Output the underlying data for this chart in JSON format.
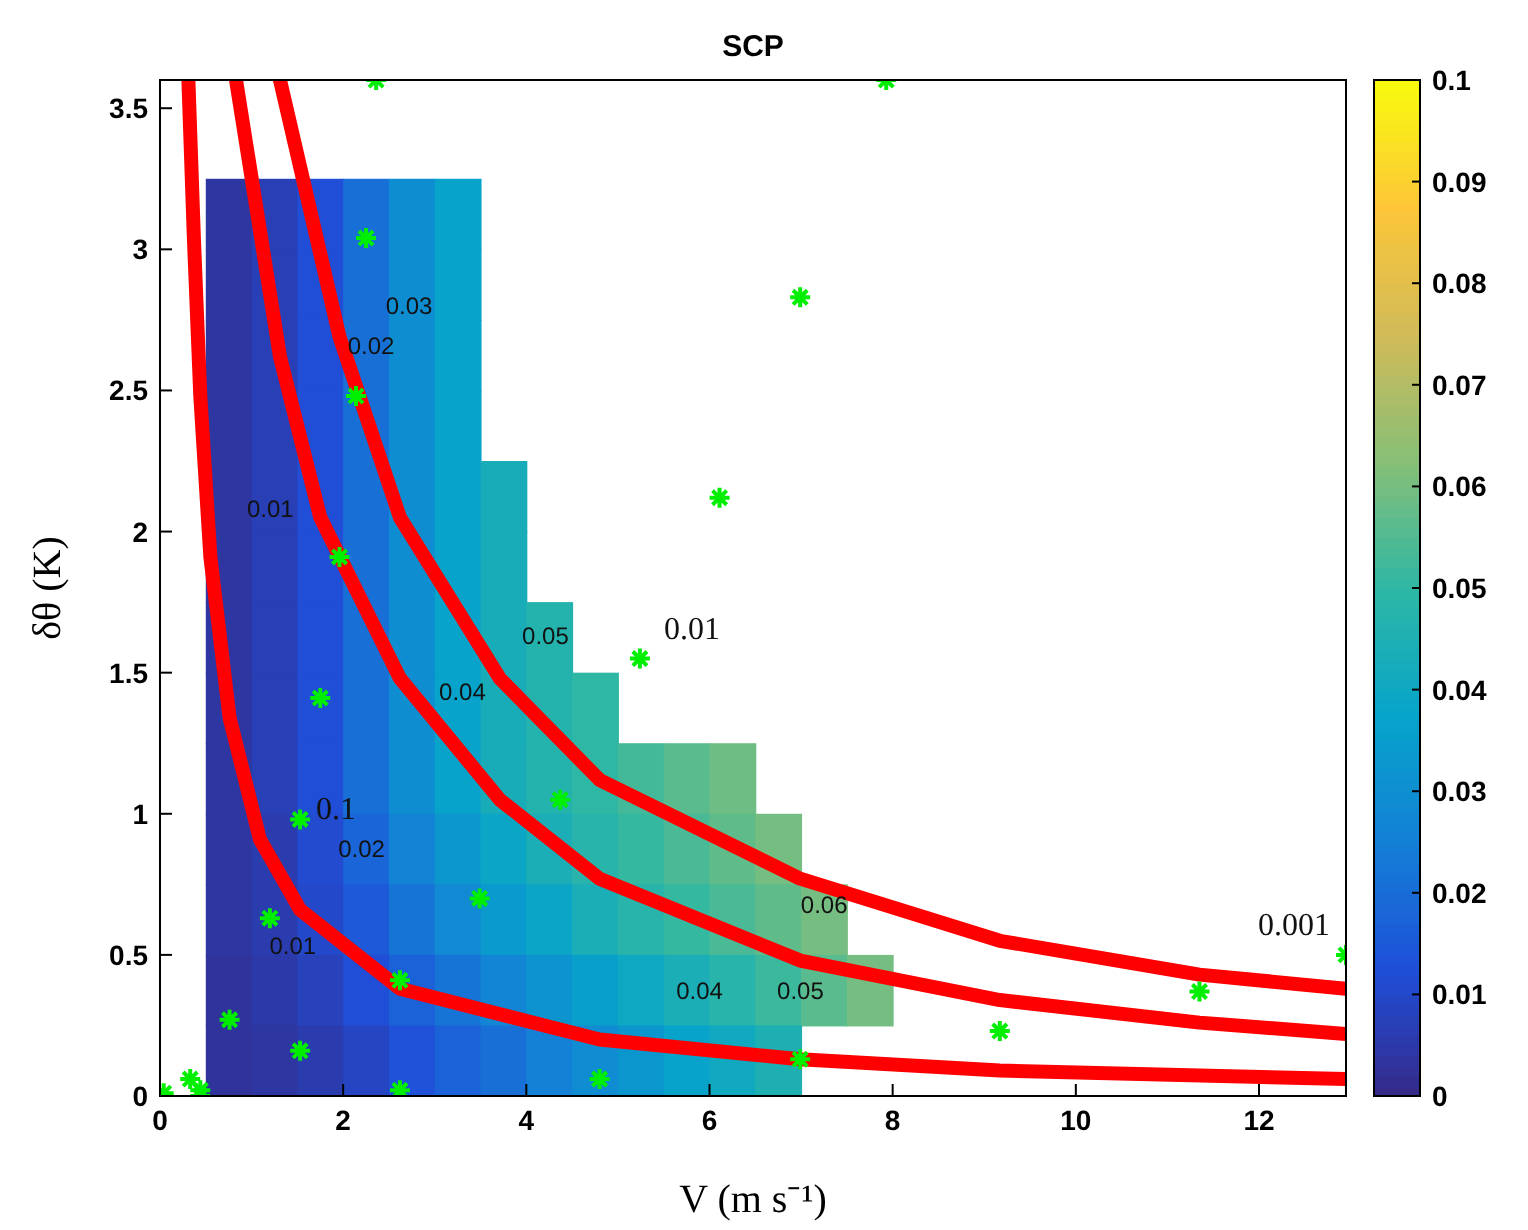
{
  "chart_data": {
    "type": "heatmap",
    "title": "SCP",
    "xlabel": "V (m s⁻¹)",
    "ylabel": "δθ (K)",
    "xlim": [
      0,
      12.95
    ],
    "ylim": [
      0,
      3.6
    ],
    "xticks": [
      0,
      2,
      4,
      6,
      8,
      10,
      12
    ],
    "yticks": [
      0,
      0.5,
      1,
      1.5,
      2,
      2.5,
      3,
      3.5
    ],
    "clim": [
      0,
      0.1
    ],
    "cticks": [
      0,
      0.01,
      0.02,
      0.03,
      0.04,
      0.05,
      0.06,
      0.07,
      0.08,
      0.09,
      0.1
    ],
    "x": [
      0.75,
      1.25,
      1.75,
      2.25,
      2.75,
      3.25,
      3.75,
      4.25,
      4.75,
      5.25,
      5.75,
      6.25,
      6.75,
      7.25,
      7.75,
      8.25
    ],
    "y": [
      3.125,
      2.875,
      2.625,
      2.375,
      2.125,
      1.875,
      1.625,
      1.375,
      1.125,
      0.875,
      0.625,
      0.375,
      0.125
    ],
    "cells": [
      [
        0.004,
        0.007,
        0.012,
        0.021,
        0.03,
        0.037,
        null,
        null,
        null,
        null,
        null,
        null,
        null,
        null,
        null,
        null
      ],
      [
        0.004,
        0.007,
        0.012,
        0.021,
        0.03,
        0.037,
        null,
        null,
        null,
        null,
        null,
        null,
        null,
        null,
        null,
        null
      ],
      [
        0.004,
        0.007,
        0.012,
        0.021,
        0.03,
        0.037,
        null,
        null,
        null,
        null,
        null,
        null,
        null,
        null,
        null,
        null
      ],
      [
        0.004,
        0.007,
        0.012,
        0.021,
        0.03,
        0.037,
        null,
        null,
        null,
        null,
        null,
        null,
        null,
        null,
        null,
        null
      ],
      [
        0.004,
        0.007,
        0.012,
        0.021,
        0.03,
        0.037,
        0.043,
        null,
        null,
        null,
        null,
        null,
        null,
        null,
        null,
        null
      ],
      [
        0.004,
        0.007,
        0.012,
        0.021,
        0.03,
        0.037,
        0.043,
        null,
        null,
        null,
        null,
        null,
        null,
        null,
        null,
        null
      ],
      [
        0.004,
        0.007,
        0.012,
        0.021,
        0.03,
        0.037,
        0.043,
        0.047,
        null,
        null,
        null,
        null,
        null,
        null,
        null,
        null
      ],
      [
        0.004,
        0.007,
        0.012,
        0.021,
        0.03,
        0.037,
        0.043,
        0.047,
        0.05,
        null,
        null,
        null,
        null,
        null,
        null,
        null
      ],
      [
        0.004,
        0.007,
        0.012,
        0.021,
        0.03,
        0.037,
        0.043,
        0.047,
        0.05,
        0.053,
        0.056,
        0.059,
        null,
        null,
        null,
        null
      ],
      [
        0.004,
        0.006,
        0.011,
        0.018,
        0.026,
        0.033,
        0.039,
        0.044,
        0.048,
        0.051,
        0.054,
        0.057,
        0.06,
        null,
        null,
        null
      ],
      [
        0.004,
        0.006,
        0.01,
        0.015,
        0.022,
        0.028,
        0.034,
        0.039,
        0.044,
        0.048,
        0.051,
        0.054,
        0.057,
        0.06,
        null,
        null
      ],
      [
        0.003,
        0.005,
        0.008,
        0.012,
        0.017,
        0.022,
        0.027,
        0.032,
        0.036,
        0.04,
        0.044,
        0.048,
        0.052,
        0.056,
        0.06,
        null
      ],
      [
        0.003,
        0.004,
        0.006,
        0.009,
        0.013,
        0.017,
        0.021,
        0.025,
        0.029,
        0.033,
        0.037,
        0.041,
        0.045,
        null,
        null,
        null
      ]
    ],
    "series": [
      {
        "type": "line",
        "color": "#ff0000",
        "x": [
          1.31,
          1.96,
          2.62,
          3.71,
          4.8,
          6.99,
          9.17,
          11.35,
          12.95
        ],
        "values": [
          3.6,
          2.69,
          2.05,
          1.48,
          1.12,
          0.77,
          0.55,
          0.43,
          0.38
        ]
      },
      {
        "type": "line",
        "color": "#ff0000",
        "x": [
          0.83,
          1.31,
          1.75,
          2.62,
          3.71,
          4.8,
          6.99,
          9.17,
          11.35,
          12.95
        ],
        "values": [
          3.6,
          2.62,
          2.05,
          1.48,
          1.05,
          0.77,
          0.48,
          0.34,
          0.26,
          0.22
        ]
      },
      {
        "type": "line",
        "color": "#ff0000",
        "x": [
          0.31,
          0.37,
          0.44,
          0.55,
          0.76,
          1.09,
          1.53,
          2.62,
          4.8,
          6.99,
          9.17,
          12.95
        ],
        "values": [
          3.6,
          3.04,
          2.48,
          1.91,
          1.34,
          0.91,
          0.66,
          0.38,
          0.2,
          0.13,
          0.09,
          0.06
        ]
      },
      {
        "type": "scatter",
        "name": "0.1",
        "color": "#00ee00",
        "marker": "cross",
        "x": [
          2.36,
          2.25,
          2.14,
          1.96,
          1.75,
          1.53,
          1.2,
          0.76,
          0.33,
          0.04
        ],
        "values": [
          3.6,
          3.04,
          2.48,
          1.91,
          1.41,
          0.98,
          0.63,
          0.27,
          0.06,
          0.01
        ]
      },
      {
        "type": "scatter",
        "name": "0.01",
        "color": "#00ee00",
        "marker": "cross",
        "x": [
          7.93,
          6.99,
          6.11,
          5.24,
          4.37,
          3.49,
          2.62,
          1.53,
          0.44
        ],
        "values": [
          3.6,
          2.83,
          2.12,
          1.55,
          1.05,
          0.7,
          0.41,
          0.16,
          0.02
        ]
      },
      {
        "type": "scatter",
        "name": "0.001",
        "color": "#00ee00",
        "marker": "cross",
        "x": [
          12.95,
          11.35,
          9.17,
          6.99,
          4.8,
          2.62,
          0.44
        ],
        "values": [
          0.5,
          0.37,
          0.23,
          0.13,
          0.06,
          0.02,
          0
        ]
      }
    ],
    "annotations": [
      "0.01",
      "0.01",
      "0.02",
      "0.02",
      "0.03",
      "0.04",
      "0.05",
      "0.04",
      "0.05",
      "0.06"
    ],
    "grid": false,
    "marker": "none",
    "line_style": "solid"
  }
}
